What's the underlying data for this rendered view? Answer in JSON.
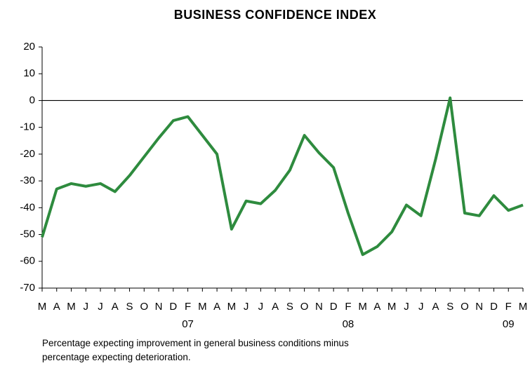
{
  "chart_data": {
    "type": "line",
    "title": "BUSINESS CONFIDENCE INDEX",
    "categories": [
      "M",
      "A",
      "M",
      "J",
      "J",
      "A",
      "S",
      "O",
      "N",
      "D",
      "F",
      "M",
      "A",
      "M",
      "J",
      "J",
      "A",
      "S",
      "O",
      "N",
      "D",
      "F",
      "M",
      "A",
      "M",
      "J",
      "J",
      "A",
      "S",
      "O",
      "N",
      "D",
      "F",
      "M"
    ],
    "year_labels": [
      null,
      null,
      null,
      null,
      null,
      null,
      null,
      null,
      null,
      null,
      "07",
      null,
      null,
      null,
      null,
      null,
      null,
      null,
      null,
      null,
      null,
      "08",
      null,
      null,
      null,
      null,
      null,
      null,
      null,
      null,
      null,
      null,
      "09",
      null
    ],
    "series": [
      {
        "name": "Business confidence index",
        "color": "#2e8b3e",
        "values": [
          -51,
          -33,
          -31,
          -32,
          -31,
          -34,
          -28,
          -21,
          -14,
          -7.5,
          -6,
          -13,
          -20,
          -48,
          -37.5,
          -38.5,
          -33.5,
          -26,
          -13,
          -19.5,
          -25,
          -42,
          -57.5,
          -54.5,
          -49,
          -39,
          -43,
          -22,
          1,
          -42,
          -43,
          -35.5,
          -41,
          -39
        ]
      }
    ],
    "ylim": [
      -70,
      20
    ],
    "yticks": [
      -70,
      -60,
      -50,
      -40,
      -30,
      -20,
      -10,
      0,
      10,
      20
    ],
    "zero_line": 0,
    "note": [
      "Percentage expecting improvement in general business conditions minus",
      "percentage expecting deterioration."
    ]
  }
}
